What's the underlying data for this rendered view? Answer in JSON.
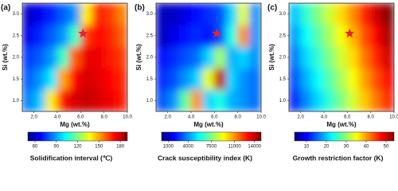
{
  "chart_data": [
    {
      "type": "heatmap",
      "label": "(a)",
      "xlabel": "Mg (wt.%)",
      "ylabel": "Si (wt.%)",
      "x": [
        1.5,
        2.5,
        3.5,
        4.5,
        5.5,
        6.5,
        7.5,
        8.5,
        9.5
      ],
      "y": [
        1.0,
        1.5,
        2.0,
        2.5,
        3.0
      ],
      "z": [
        [
          85,
          95,
          140,
          170,
          178,
          180,
          178,
          175,
          170
        ],
        [
          80,
          88,
          100,
          150,
          172,
          178,
          176,
          172,
          168
        ],
        [
          75,
          80,
          88,
          110,
          160,
          175,
          175,
          170,
          165
        ],
        [
          65,
          72,
          80,
          88,
          110,
          165,
          172,
          168,
          160
        ],
        [
          60,
          65,
          72,
          80,
          88,
          140,
          168,
          165,
          155
        ]
      ],
      "xlim": [
        1,
        10
      ],
      "ylim": [
        0.75,
        3.25
      ],
      "xticks": [
        {
          "value": 2,
          "label": "2.0"
        },
        {
          "value": 4,
          "label": "4.0"
        },
        {
          "value": 6,
          "label": "6.0"
        },
        {
          "value": 8,
          "label": "8.0"
        },
        {
          "value": 10,
          "label": "10.0"
        }
      ],
      "yticks": [
        {
          "value": 1,
          "label": "1.0"
        },
        {
          "value": 1.5,
          "label": "1.5"
        },
        {
          "value": 2,
          "label": "2.0"
        },
        {
          "value": 2.5,
          "label": "2.5"
        },
        {
          "value": 3,
          "label": "3.0"
        }
      ],
      "marker": {
        "x": 6.2,
        "y": 2.55,
        "color": "#e8212b"
      },
      "colorbar": {
        "label": "Solidification interval (℃)",
        "lim": [
          50,
          190
        ],
        "ticks": [
          60,
          90,
          120,
          150,
          180
        ]
      }
    },
    {
      "type": "heatmap",
      "label": "(b)",
      "xlabel": "Mg (wt.%)",
      "ylabel": "Si (wt.%)",
      "x": [
        1.5,
        2.5,
        3.5,
        4.5,
        5.5,
        6.5,
        7.5,
        8.5,
        9.5
      ],
      "y": [
        1.0,
        1.5,
        2.0,
        2.5,
        3.0
      ],
      "z": [
        [
          3000,
          4000,
          7000,
          11000,
          5000,
          6000,
          4500,
          4000,
          3500
        ],
        [
          2500,
          3000,
          4000,
          5000,
          9000,
          14000,
          5000,
          4000,
          3500
        ],
        [
          2000,
          2500,
          3000,
          3500,
          5000,
          8000,
          4500,
          5000,
          4000
        ],
        [
          1000,
          1500,
          2000,
          2500,
          2000,
          3000,
          6000,
          11000,
          4000
        ],
        [
          1000,
          1000,
          1500,
          2000,
          2500,
          3000,
          5000,
          9000,
          4000
        ]
      ],
      "xlim": [
        1,
        10
      ],
      "ylim": [
        0.75,
        3.25
      ],
      "xticks": [
        {
          "value": 2,
          "label": "2.0"
        },
        {
          "value": 4,
          "label": "4.0"
        },
        {
          "value": 6,
          "label": "6.0"
        },
        {
          "value": 8,
          "label": "8.0"
        },
        {
          "value": 10,
          "label": "10.0"
        }
      ],
      "yticks": [
        {
          "value": 1,
          "label": "1.0"
        },
        {
          "value": 1.5,
          "label": "1.5"
        },
        {
          "value": 2,
          "label": "2.0"
        },
        {
          "value": 2.5,
          "label": "2.5"
        },
        {
          "value": 3,
          "label": "3.0"
        }
      ],
      "marker": {
        "x": 6.2,
        "y": 2.55,
        "color": "#e8212b"
      },
      "colorbar": {
        "label": "Crack susceptibility index (K)",
        "lim": [
          0,
          15000
        ],
        "ticks": [
          1000,
          4000,
          7500,
          11000,
          14000
        ]
      }
    },
    {
      "type": "heatmap",
      "label": "(c)",
      "xlabel": "Mg (wt.%)",
      "ylabel": "Si (wt.%)",
      "x": [
        1.5,
        2.5,
        3.5,
        4.5,
        5.5,
        6.5,
        7.5,
        8.5,
        9.5
      ],
      "y": [
        1.0,
        1.5,
        2.0,
        2.5,
        3.0
      ],
      "z": [
        [
          12,
          17,
          21,
          25,
          29,
          33,
          38,
          42,
          46
        ],
        [
          14,
          19,
          23,
          27,
          31,
          35,
          40,
          44,
          48
        ],
        [
          16,
          21,
          25,
          29,
          33,
          37,
          42,
          46,
          50
        ],
        [
          18,
          23,
          27,
          31,
          35,
          39,
          44,
          48,
          52
        ],
        [
          20,
          25,
          29,
          33,
          37,
          41,
          46,
          50,
          54
        ]
      ],
      "xlim": [
        1,
        10
      ],
      "ylim": [
        0.75,
        3.25
      ],
      "xticks": [
        {
          "value": 2,
          "label": "2.0"
        },
        {
          "value": 4,
          "label": "4.0"
        },
        {
          "value": 6,
          "label": "6.0"
        },
        {
          "value": 8,
          "label": "8.0"
        },
        {
          "value": 10,
          "label": "10.0"
        }
      ],
      "yticks": [
        {
          "value": 1,
          "label": "1.0"
        },
        {
          "value": 1.5,
          "label": "1.5"
        },
        {
          "value": 2,
          "label": "2.0"
        },
        {
          "value": 2.5,
          "label": "2.5"
        },
        {
          "value": 3,
          "label": "3.0"
        }
      ],
      "marker": {
        "x": 6.2,
        "y": 2.55,
        "color": "#e8212b"
      },
      "colorbar": {
        "label": "Growth restriction factor (K)",
        "lim": [
          4,
          54
        ],
        "ticks": [
          10,
          20,
          30,
          40,
          50
        ]
      }
    }
  ]
}
